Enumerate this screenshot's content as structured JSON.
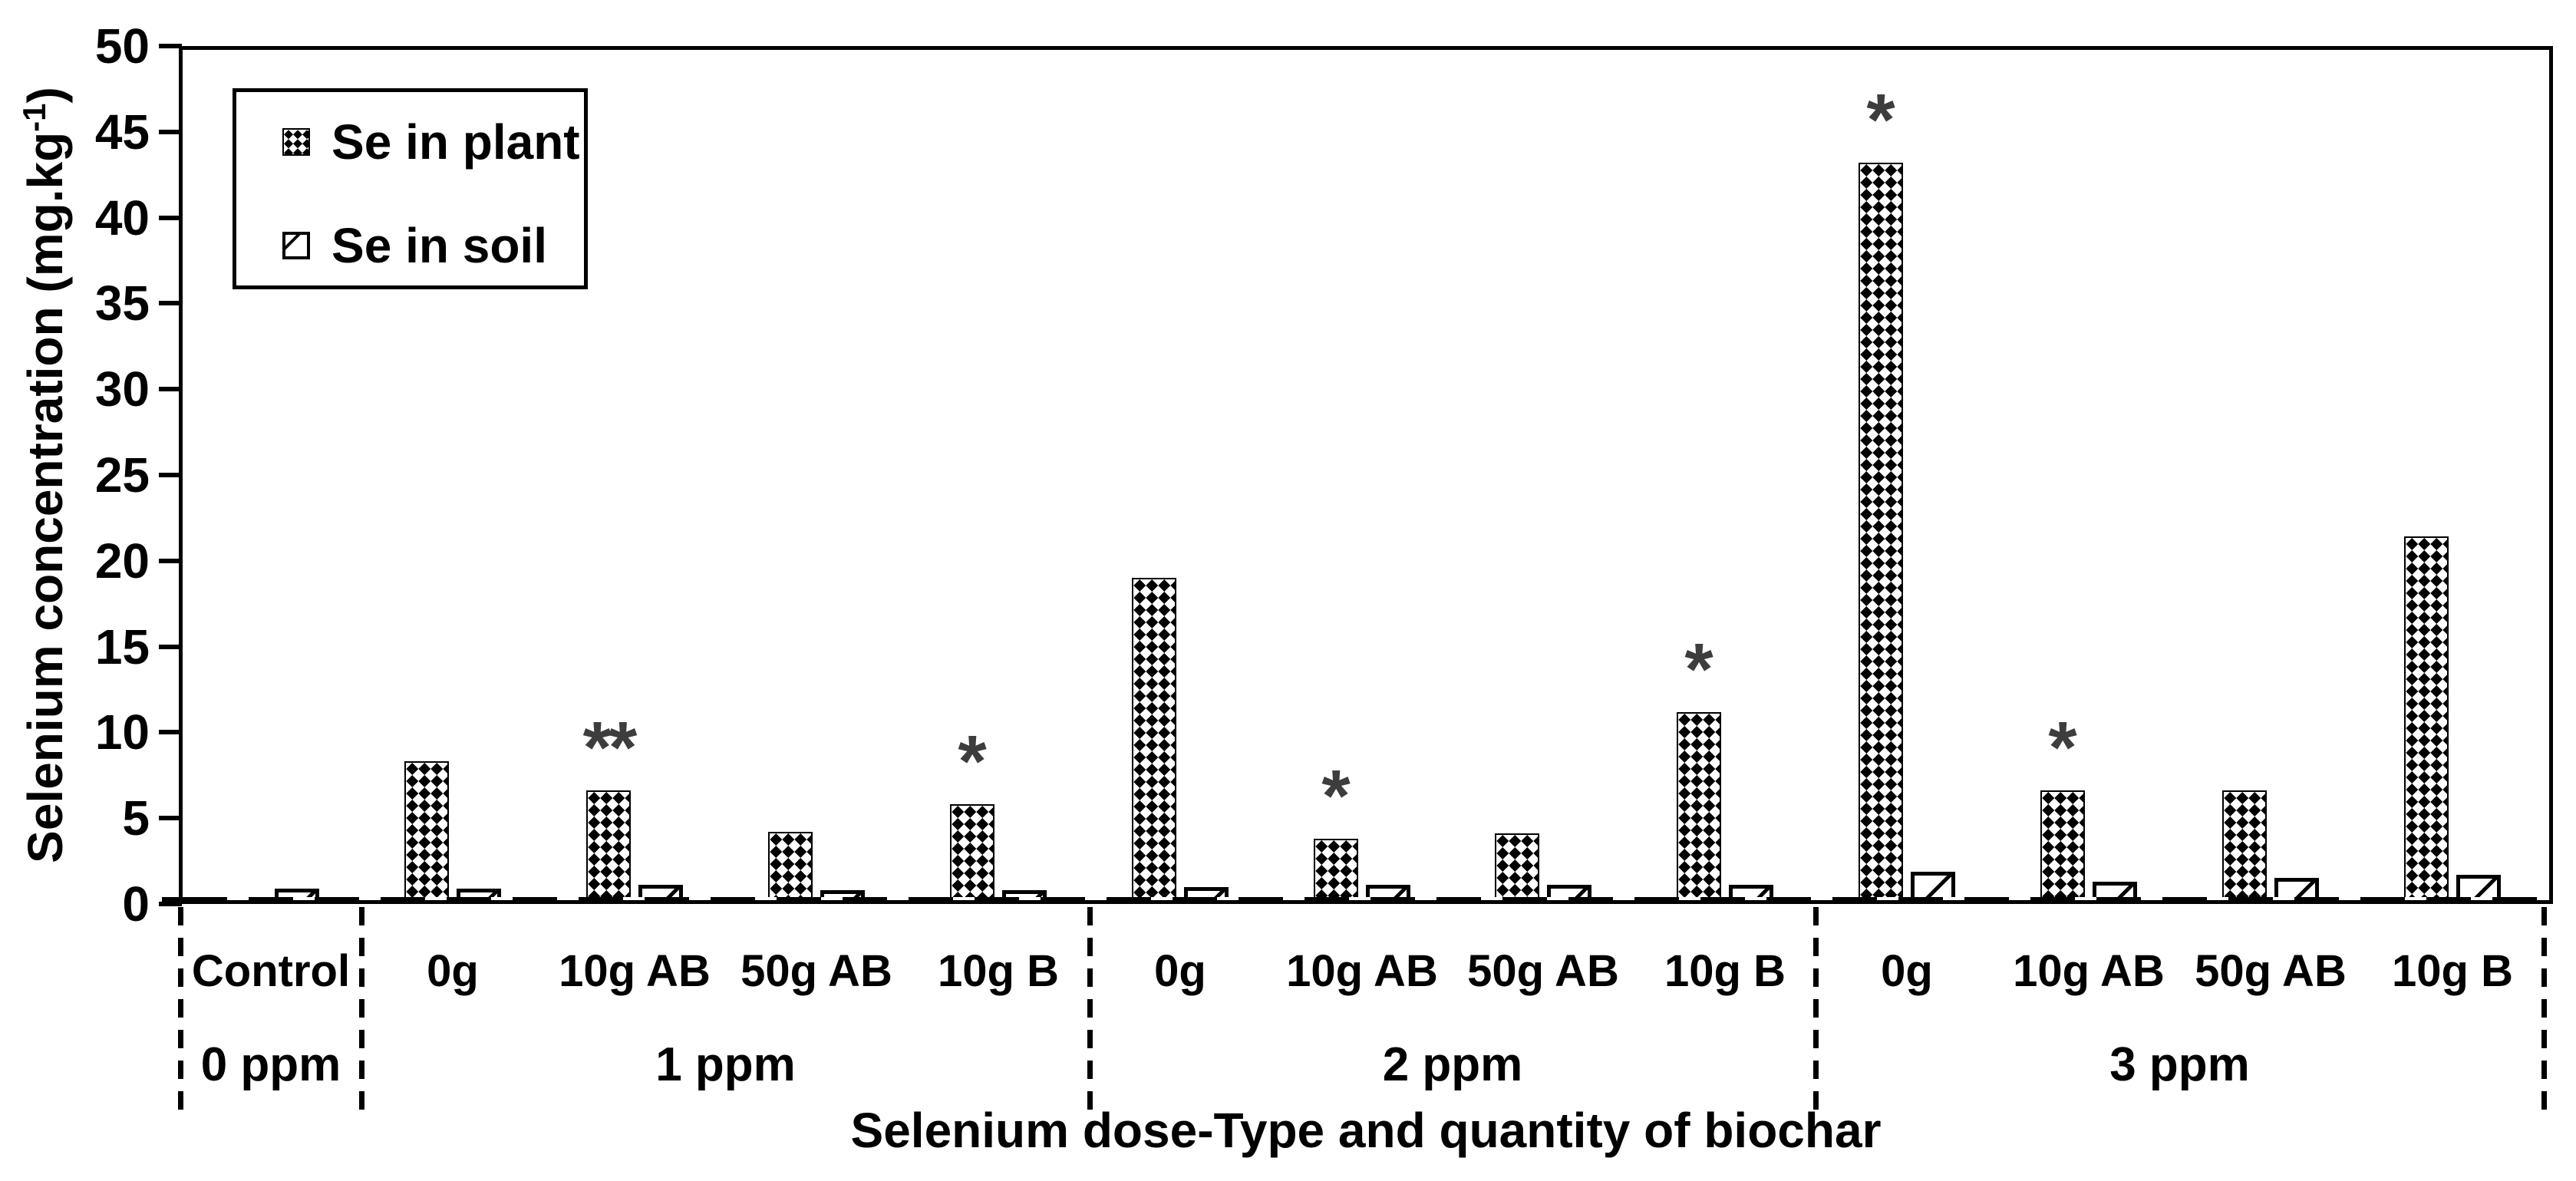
{
  "chart_data": {
    "type": "bar",
    "title": "",
    "xlabel": "Selenium dose-Type and quantity of biochar",
    "ylabel_main": "Selenium concentration (mg.kg",
    "ylabel_sup": "-1",
    "ylabel_close": ")",
    "ylim": [
      0,
      50
    ],
    "ytick_step": 5,
    "yticks": [
      0,
      5,
      10,
      15,
      20,
      25,
      30,
      35,
      40,
      45,
      50
    ],
    "grid": false,
    "legend_position": "upper-left-inside",
    "legend": [
      {
        "name": "Se in plant",
        "pattern": "dark-checker"
      },
      {
        "name": "Se in soil",
        "pattern": "white-light-diagonal"
      }
    ],
    "series_names": [
      "Se in plant",
      "Se in soil"
    ],
    "groups": [
      {
        "dose": "0 ppm",
        "treatments": [
          {
            "label": "Control",
            "plant": 0.2,
            "soil": 0.9,
            "sig": ""
          }
        ]
      },
      {
        "dose": "1 ppm",
        "treatments": [
          {
            "label": "0g",
            "plant": 8.3,
            "soil": 0.9,
            "sig": ""
          },
          {
            "label": "10g AB",
            "plant": 6.6,
            "soil": 1.1,
            "sig": "**"
          },
          {
            "label": "50g AB",
            "plant": 4.2,
            "soil": 0.8,
            "sig": ""
          },
          {
            "label": "10g B",
            "plant": 5.8,
            "soil": 0.8,
            "sig": "*"
          }
        ]
      },
      {
        "dose": "2 ppm",
        "treatments": [
          {
            "label": "0g",
            "plant": 19.0,
            "soil": 1.0,
            "sig": ""
          },
          {
            "label": "10g AB",
            "plant": 3.8,
            "soil": 1.1,
            "sig": "*"
          },
          {
            "label": "50g AB",
            "plant": 4.1,
            "soil": 1.1,
            "sig": ""
          },
          {
            "label": "10g B",
            "plant": 11.2,
            "soil": 1.1,
            "sig": "*"
          }
        ]
      },
      {
        "dose": "3 ppm",
        "treatments": [
          {
            "label": "0g",
            "plant": 43.2,
            "soil": 1.9,
            "sig": "*"
          },
          {
            "label": "10g AB",
            "plant": 6.6,
            "soil": 1.3,
            "sig": "*"
          },
          {
            "label": "50g AB",
            "plant": 6.6,
            "soil": 1.5,
            "sig": ""
          },
          {
            "label": "10g B",
            "plant": 21.4,
            "soil": 1.7,
            "sig": ""
          }
        ]
      }
    ]
  },
  "colors": {
    "bar_fill": "#000000",
    "background": "#ffffff",
    "significance_marker": "#3d3d3d"
  }
}
